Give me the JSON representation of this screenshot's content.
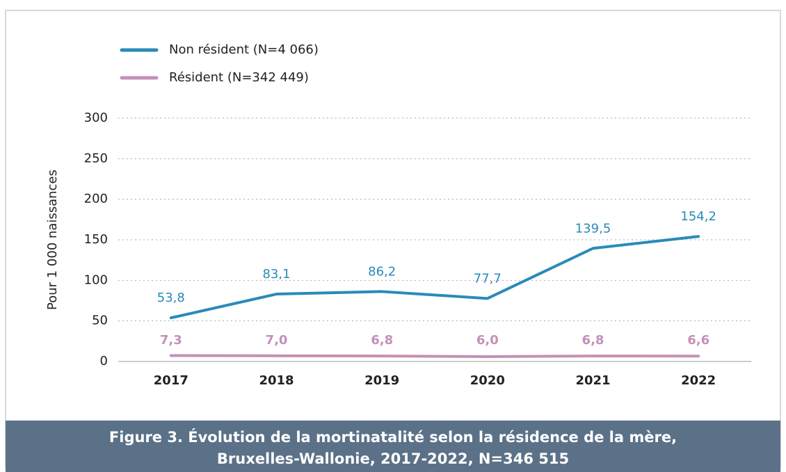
{
  "chart_data": {
    "type": "line",
    "title_lines": [
      "Figure 3. Évolution de la mortinatalité selon la résidence de la mère,",
      "Bruxelles-Wallonie, 2017-2022, N=346 515"
    ],
    "y_label": "Pour 1 000 naissances",
    "categories": [
      "2017",
      "2018",
      "2019",
      "2020",
      "2021",
      "2022"
    ],
    "series": [
      {
        "name": "Non résident (N=4 066)",
        "color": "#2a8ab8",
        "values": [
          53.8,
          83.1,
          86.2,
          77.7,
          139.5,
          154.2
        ],
        "value_labels": [
          "53,8",
          "83,1",
          "86,2",
          "77,7",
          "139,5",
          "154,2"
        ]
      },
      {
        "name": "Résident (N=342 449)",
        "color": "#c490b8",
        "values": [
          7.3,
          7.0,
          6.8,
          6.0,
          6.8,
          6.6
        ],
        "value_labels": [
          "7,3",
          "7,0",
          "6,8",
          "6,0",
          "6,8",
          "6,6"
        ]
      }
    ],
    "ylim": [
      0,
      300
    ],
    "yticks": [
      0,
      50,
      100,
      150,
      200,
      250,
      300
    ],
    "grid": true,
    "legend": "top-left"
  }
}
